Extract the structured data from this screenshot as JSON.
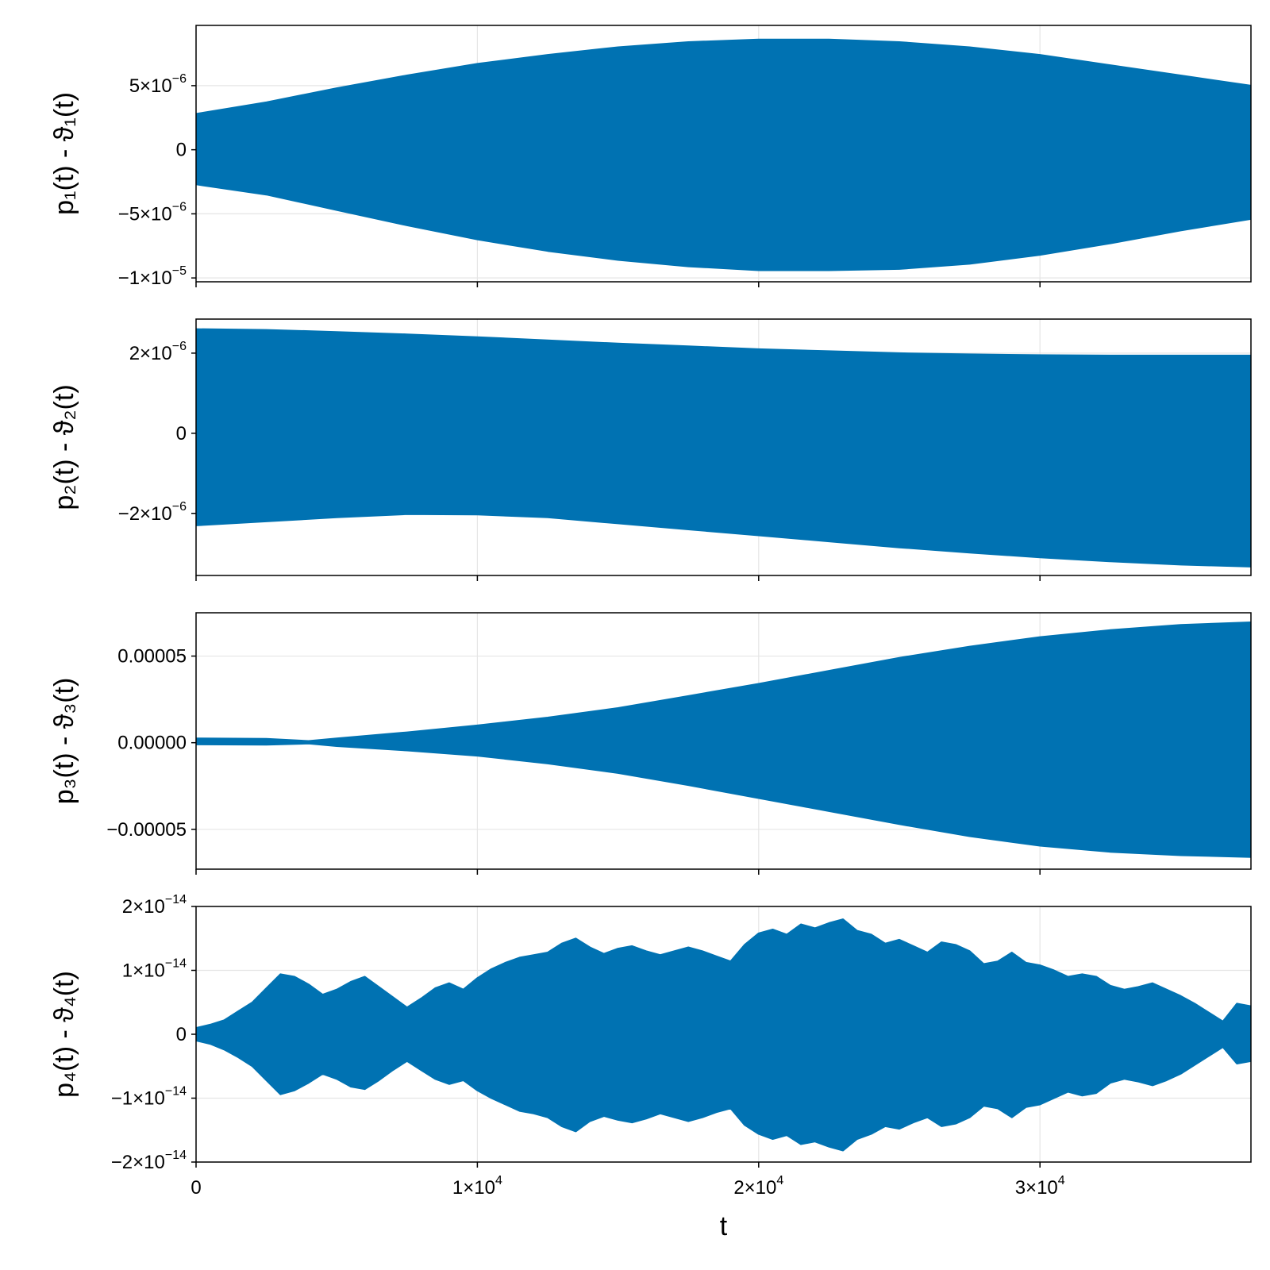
{
  "chart_data": {
    "type": "area",
    "layout": "4 stacked panels sharing x axis",
    "series_color": "#0072B2",
    "grid": true,
    "legend": "none",
    "x": {
      "label": "t",
      "lim": [
        0,
        37500
      ],
      "ticks": [
        {
          "value": 0,
          "mant": "0",
          "exp": ""
        },
        {
          "value": 10000,
          "mant": "1×10",
          "exp": "4"
        },
        {
          "value": 20000,
          "mant": "2×10",
          "exp": "4"
        },
        {
          "value": 30000,
          "mant": "3×10",
          "exp": "4"
        }
      ]
    },
    "panels": [
      {
        "ylabel": "p₁(t) - ϑ₁(t)",
        "ylim": [
          -1.03e-05,
          9.7e-06
        ],
        "yticks": [
          {
            "value": 5e-06,
            "mant": "5×10",
            "exp": "−6"
          },
          {
            "value": 0,
            "mant": "0",
            "exp": ""
          },
          {
            "value": -5e-06,
            "mant": "−5×10",
            "exp": "−6"
          },
          {
            "value": -1e-05,
            "mant": "−1×10",
            "exp": "−5"
          }
        ],
        "envelope": {
          "t": [
            0,
            2500,
            5000,
            7500,
            10000,
            12500,
            15000,
            17500,
            20000,
            22500,
            25000,
            27500,
            30000,
            32500,
            35000,
            37500
          ],
          "upper": [
            2.8e-06,
            3.7e-06,
            4.8e-06,
            5.8e-06,
            6.7e-06,
            7.4e-06,
            8e-06,
            8.4e-06,
            8.6e-06,
            8.6e-06,
            8.4e-06,
            8e-06,
            7.4e-06,
            6.6e-06,
            5.8e-06,
            5e-06
          ],
          "lower": [
            -2.7e-06,
            -3.5e-06,
            -4.7e-06,
            -5.9e-06,
            -7e-06,
            -7.9e-06,
            -8.6e-06,
            -9.1e-06,
            -9.4e-06,
            -9.4e-06,
            -9.3e-06,
            -8.9e-06,
            -8.2e-06,
            -7.3e-06,
            -6.3e-06,
            -5.4e-06
          ]
        }
      },
      {
        "ylabel": "p₂(t) - ϑ₂(t)",
        "ylim": [
          -3.55e-06,
          2.85e-06
        ],
        "yticks": [
          {
            "value": 2e-06,
            "mant": "2×10",
            "exp": "−6"
          },
          {
            "value": 0,
            "mant": "0",
            "exp": ""
          },
          {
            "value": -2e-06,
            "mant": "−2×10",
            "exp": "−6"
          }
        ],
        "envelope": {
          "t": [
            0,
            2500,
            5000,
            7500,
            10000,
            12500,
            15000,
            17500,
            20000,
            22500,
            25000,
            27500,
            30000,
            32500,
            35000,
            37500
          ],
          "upper": [
            2.6e-06,
            2.58e-06,
            2.53e-06,
            2.47e-06,
            2.4e-06,
            2.32e-06,
            2.24e-06,
            2.17e-06,
            2.1e-06,
            2.05e-06,
            2e-06,
            1.97e-06,
            1.95e-06,
            1.94e-06,
            1.94e-06,
            1.94e-06
          ],
          "lower": [
            -2.3e-06,
            -2.2e-06,
            -2.1e-06,
            -2.02e-06,
            -2.03e-06,
            -2.1e-06,
            -2.25e-06,
            -2.4e-06,
            -2.55e-06,
            -2.7e-06,
            -2.85e-06,
            -2.98e-06,
            -3.1e-06,
            -3.2e-06,
            -3.28e-06,
            -3.33e-06
          ]
        }
      },
      {
        "ylabel": "p₃(t) - ϑ₃(t)",
        "ylim": [
          -7.3e-05,
          7.5e-05
        ],
        "yticks": [
          {
            "value": 5e-05,
            "mant": "0.00005",
            "exp": ""
          },
          {
            "value": 0,
            "mant": "0.00000",
            "exp": ""
          },
          {
            "value": -5e-05,
            "mant": "−0.00005",
            "exp": ""
          }
        ],
        "envelope": {
          "t": [
            0,
            2500,
            4000,
            5000,
            7500,
            10000,
            12500,
            15000,
            17500,
            20000,
            22500,
            25000,
            27500,
            30000,
            32500,
            35000,
            37500
          ],
          "upper": [
            2.5e-06,
            2.3e-06,
            1e-06,
            2.5e-06,
            6e-06,
            1e-05,
            1.45e-05,
            2e-05,
            2.7e-05,
            3.4e-05,
            4.15e-05,
            4.9e-05,
            5.55e-05,
            6.1e-05,
            6.5e-05,
            6.8e-05,
            6.95e-05
          ],
          "lower": [
            -1e-06,
            -1.2e-06,
            -5e-07,
            -2e-06,
            -4.5e-06,
            -7.5e-06,
            -1.2e-05,
            -1.75e-05,
            -2.45e-05,
            -3.2e-05,
            -3.95e-05,
            -4.7e-05,
            -5.4e-05,
            -5.95e-05,
            -6.3e-05,
            -6.5e-05,
            -6.6e-05
          ]
        }
      },
      {
        "ylabel": "p₄(t) - ϑ₄(t)",
        "ylim": [
          -2e-14,
          2e-14
        ],
        "yticks": [
          {
            "value": 2e-14,
            "mant": "2×10",
            "exp": "−14"
          },
          {
            "value": 1e-14,
            "mant": "1×10",
            "exp": "−14"
          },
          {
            "value": 0,
            "mant": "0",
            "exp": ""
          },
          {
            "value": -1e-14,
            "mant": "−1×10",
            "exp": "−14"
          },
          {
            "value": -2e-14,
            "mant": "−2×10",
            "exp": "−14"
          }
        ],
        "envelope": {
          "t": [
            0,
            500,
            1000,
            1500,
            2000,
            2500,
            3000,
            3500,
            4000,
            4500,
            5000,
            5500,
            6000,
            6500,
            7000,
            7500,
            8000,
            8500,
            9000,
            9500,
            10000,
            10500,
            11000,
            11500,
            12000,
            12500,
            13000,
            13500,
            14000,
            14500,
            15000,
            15500,
            16000,
            16500,
            17000,
            17500,
            18000,
            18500,
            19000,
            19500,
            20000,
            20500,
            21000,
            21500,
            22000,
            22500,
            23000,
            23500,
            24000,
            24500,
            25000,
            25500,
            26000,
            26500,
            27000,
            27500,
            28000,
            28500,
            29000,
            29500,
            30000,
            30500,
            31000,
            31500,
            32000,
            32500,
            33000,
            33500,
            34000,
            34500,
            35000,
            35500,
            36000,
            36500,
            37000,
            37500
          ],
          "upper": [
            1e-15,
            1.5e-15,
            2.2e-15,
            3.6e-15,
            5e-15,
            7.2e-15,
            9.4e-15,
            9e-15,
            7.8e-15,
            6.2e-15,
            7e-15,
            8.2e-15,
            9e-15,
            7.4e-15,
            5.8e-15,
            4.2e-15,
            5.6e-15,
            7.2e-15,
            8e-15,
            7e-15,
            8.8e-15,
            1.02e-14,
            1.12e-14,
            1.2e-14,
            1.24e-14,
            1.28e-14,
            1.42e-14,
            1.5e-14,
            1.36e-14,
            1.26e-14,
            1.34e-14,
            1.38e-14,
            1.3e-14,
            1.24e-14,
            1.3e-14,
            1.36e-14,
            1.3e-14,
            1.22e-14,
            1.14e-14,
            1.4e-14,
            1.58e-14,
            1.64e-14,
            1.56e-14,
            1.72e-14,
            1.66e-14,
            1.74e-14,
            1.8e-14,
            1.62e-14,
            1.56e-14,
            1.42e-14,
            1.48e-14,
            1.38e-14,
            1.28e-14,
            1.44e-14,
            1.4e-14,
            1.3e-14,
            1.1e-14,
            1.14e-14,
            1.28e-14,
            1.12e-14,
            1.08e-14,
            1e-14,
            9e-15,
            9.4e-15,
            9e-15,
            7.6e-15,
            7e-15,
            7.4e-15,
            8e-15,
            7e-15,
            6e-15,
            4.8e-15,
            3.4e-15,
            2e-15,
            4.8e-15,
            4.4e-15
          ],
          "lower": [
            -1e-15,
            -1.5e-15,
            -2.4e-15,
            -3.6e-15,
            -5e-15,
            -7.2e-15,
            -9.4e-15,
            -8.8e-15,
            -7.6e-15,
            -6.2e-15,
            -7e-15,
            -8.2e-15,
            -8.6e-15,
            -7.2e-15,
            -5.6e-15,
            -4.2e-15,
            -5.6e-15,
            -7e-15,
            -7.8e-15,
            -7.2e-15,
            -8.8e-15,
            -1e-14,
            -1.1e-14,
            -1.2e-14,
            -1.24e-14,
            -1.3e-14,
            -1.44e-14,
            -1.52e-14,
            -1.36e-14,
            -1.28e-14,
            -1.34e-14,
            -1.38e-14,
            -1.32e-14,
            -1.24e-14,
            -1.3e-14,
            -1.36e-14,
            -1.3e-14,
            -1.22e-14,
            -1.16e-14,
            -1.42e-14,
            -1.56e-14,
            -1.64e-14,
            -1.58e-14,
            -1.72e-14,
            -1.68e-14,
            -1.76e-14,
            -1.82e-14,
            -1.64e-14,
            -1.56e-14,
            -1.44e-14,
            -1.48e-14,
            -1.38e-14,
            -1.3e-14,
            -1.44e-14,
            -1.4e-14,
            -1.3e-14,
            -1.12e-14,
            -1.16e-14,
            -1.3e-14,
            -1.14e-14,
            -1.1e-14,
            -1e-14,
            -9e-15,
            -9.6e-15,
            -9.2e-15,
            -7.6e-15,
            -7e-15,
            -7.4e-15,
            -8e-15,
            -7.2e-15,
            -6.2e-15,
            -4.8e-15,
            -3.4e-15,
            -2e-15,
            -4.6e-15,
            -4.2e-15
          ]
        }
      }
    ]
  }
}
